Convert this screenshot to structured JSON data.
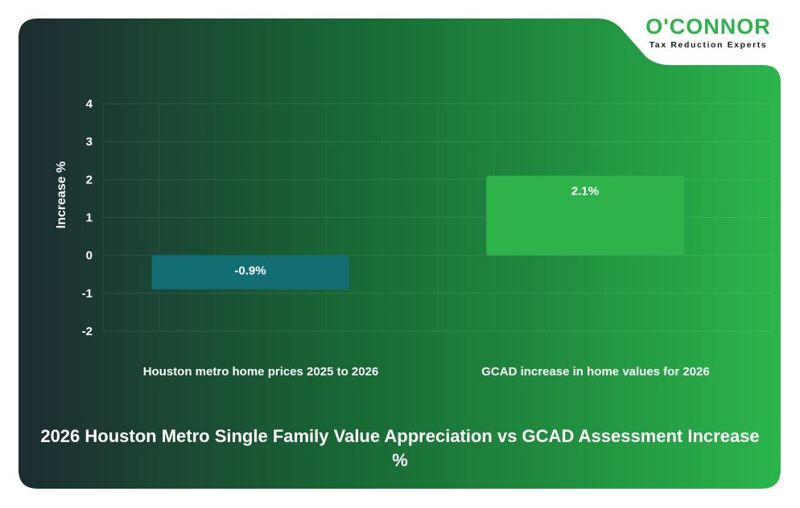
{
  "brand": {
    "name": "O'CONNOR",
    "tagline": "Tax Reduction Experts"
  },
  "colors": {
    "bar_negative": "#136e74",
    "bar_positive": "#2db34a",
    "brand_green": "#2db34a",
    "bg_dark": "#1d2c31",
    "bg_bright": "#2bb54b"
  },
  "chart_data": {
    "type": "bar",
    "title": "2026 Houston Metro Single Family Value Appreciation vs GCAD Assessment Increase %",
    "xlabel": "",
    "ylabel": "Increase %",
    "ylim": [
      -2,
      4
    ],
    "yticks": [
      4,
      3,
      2,
      1,
      0,
      -1,
      -2
    ],
    "grid": true,
    "categories": [
      "Houston metro home prices 2025 to 2026",
      "GCAD increase in home values for 2026"
    ],
    "values": [
      -0.9,
      2.1
    ],
    "data_labels": [
      "-0.9%",
      "2.1%"
    ]
  }
}
